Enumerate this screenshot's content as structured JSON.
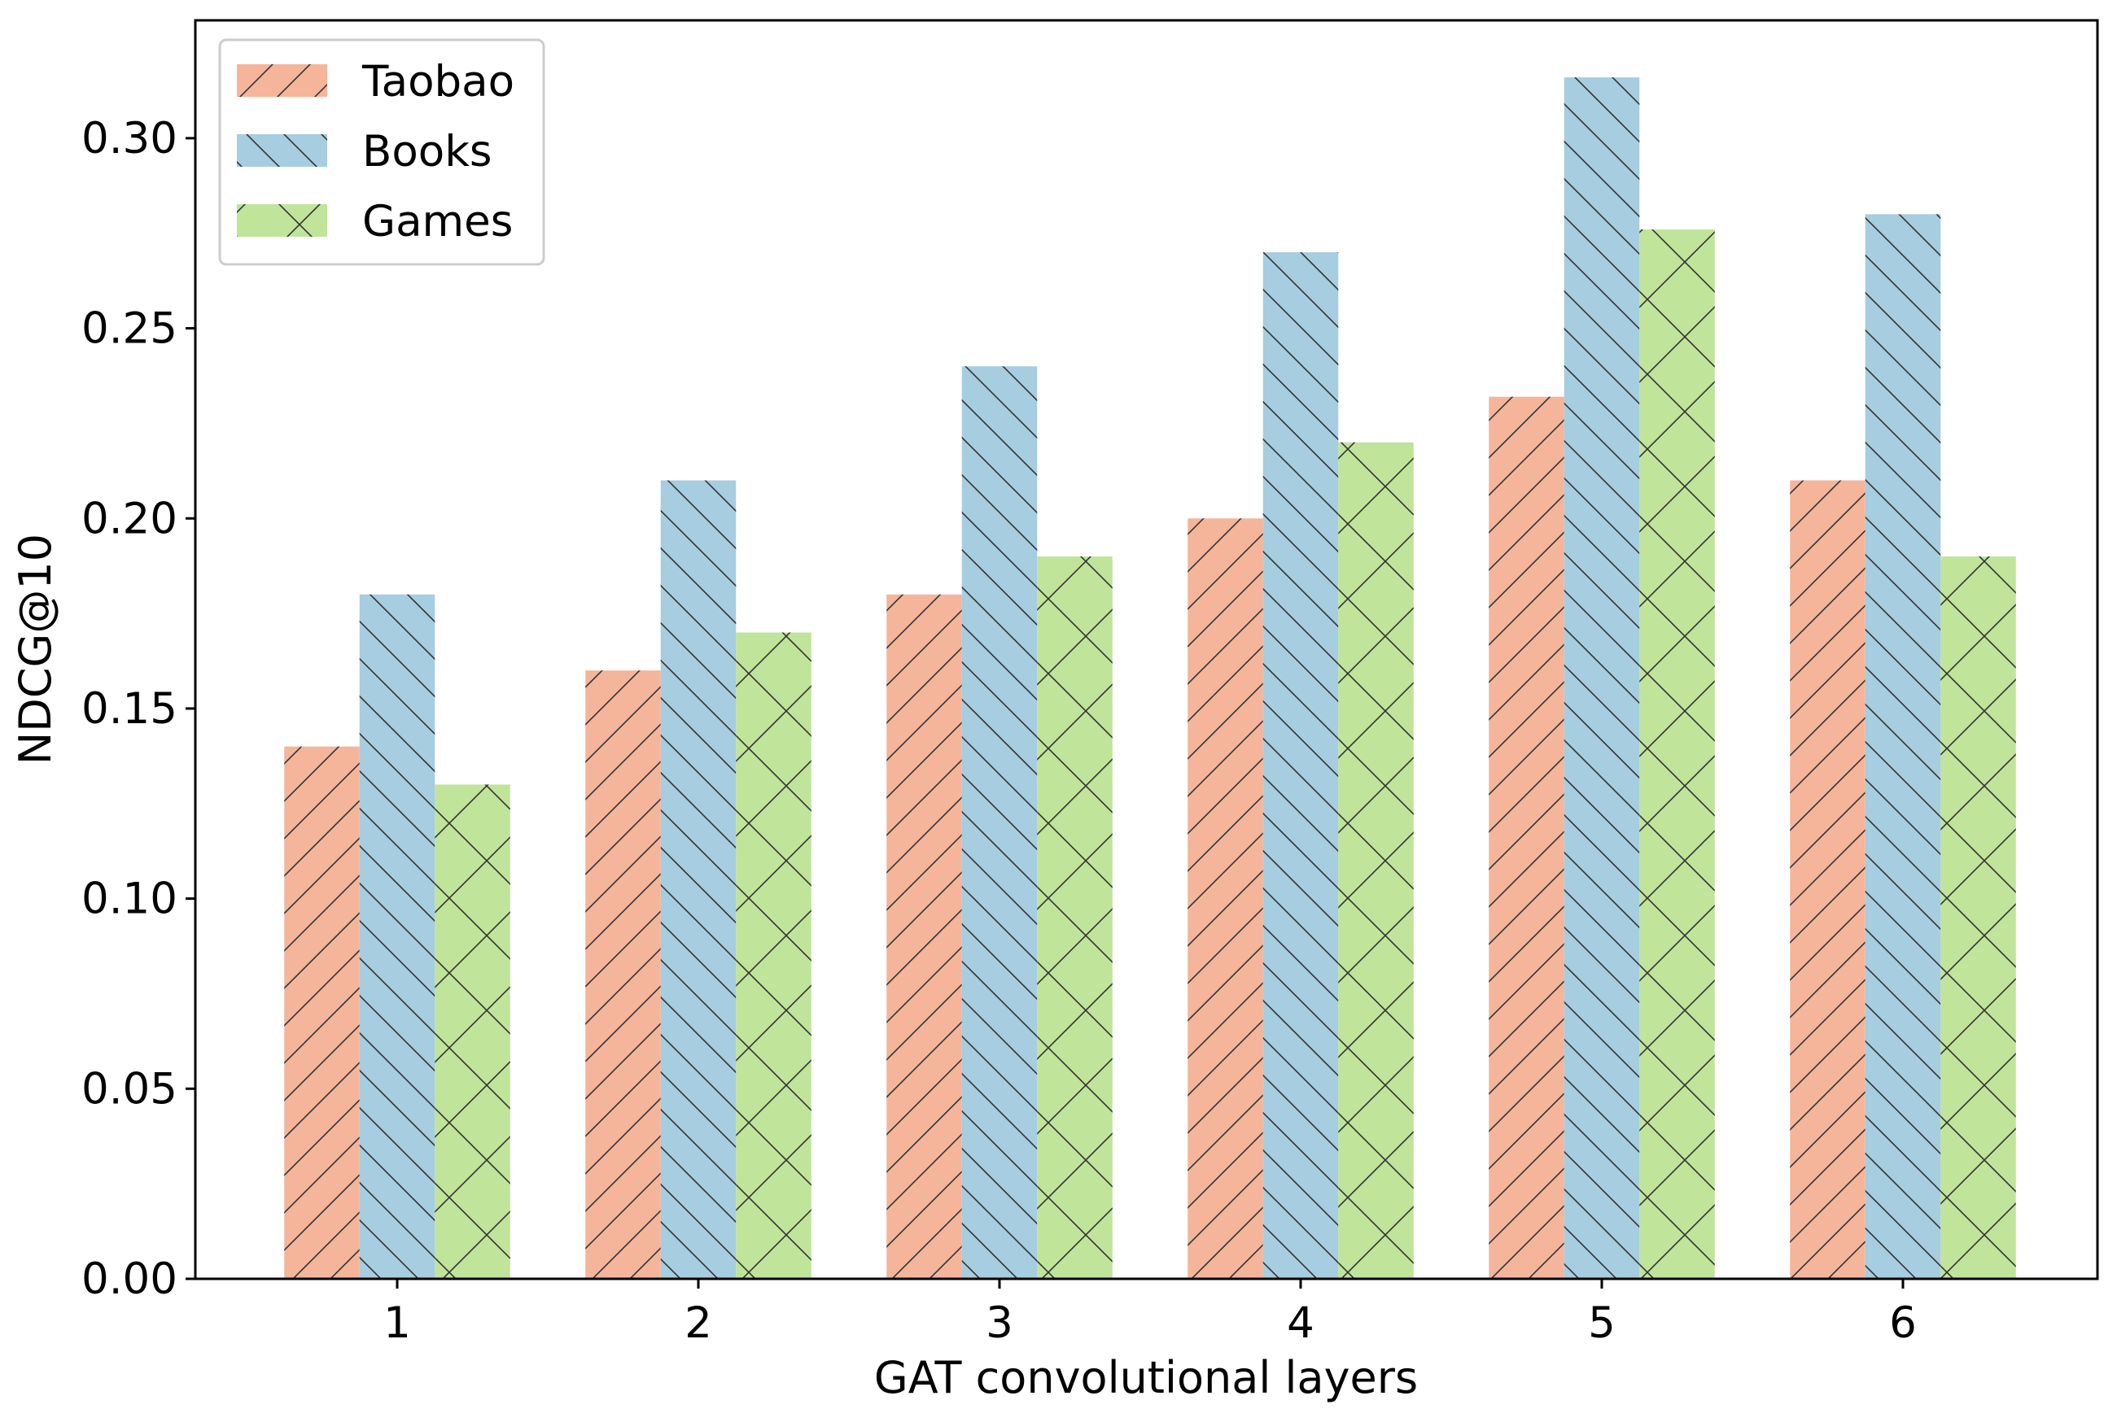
{
  "chart_data": {
    "type": "bar",
    "title": "",
    "xlabel": "GAT convolutional layers",
    "ylabel": "NDCG@10",
    "categories": [
      "1",
      "2",
      "3",
      "4",
      "5",
      "6"
    ],
    "series": [
      {
        "name": "Taobao",
        "values": [
          0.14,
          0.16,
          0.18,
          0.2,
          0.232,
          0.21
        ],
        "color": "#f4b59b",
        "hatch": "forward"
      },
      {
        "name": "Books",
        "values": [
          0.18,
          0.21,
          0.24,
          0.27,
          0.316,
          0.28
        ],
        "color": "#a6cde0",
        "hatch": "back"
      },
      {
        "name": "Games",
        "values": [
          0.13,
          0.17,
          0.19,
          0.22,
          0.276,
          0.19
        ],
        "color": "#c0e49a",
        "hatch": "cross"
      }
    ],
    "ylim": [
      0,
      0.331
    ],
    "yticks": [
      "0.00",
      "0.05",
      "0.10",
      "0.15",
      "0.20",
      "0.25",
      "0.30"
    ],
    "grid": false,
    "legend_position": "top-left"
  }
}
